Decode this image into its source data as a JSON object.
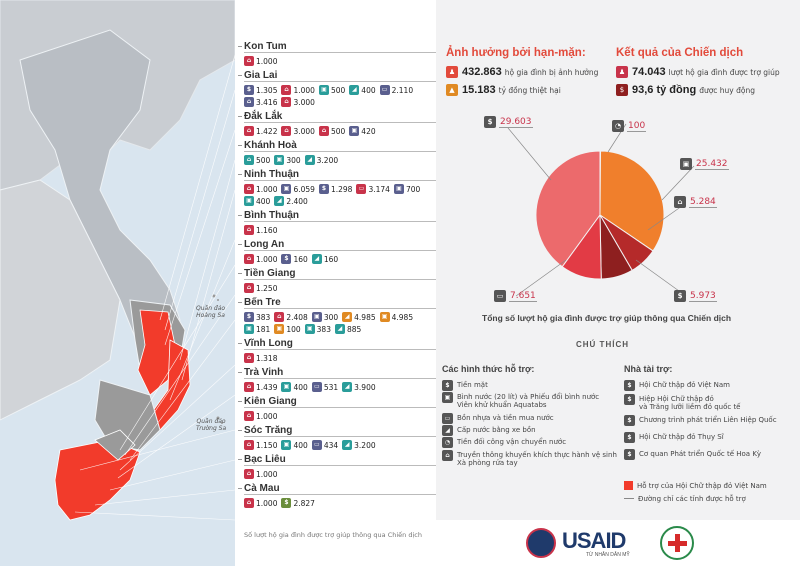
{
  "provinces": [
    {
      "name": "Kon Tum",
      "items": [
        {
          "c": "c-red",
          "i": "⌂",
          "v": "1.000"
        }
      ]
    },
    {
      "name": "Gia Lai",
      "items": [
        {
          "c": "c-blue",
          "i": "$",
          "v": "1.305"
        },
        {
          "c": "c-red",
          "i": "⌂",
          "v": "1.000"
        },
        {
          "c": "c-teal",
          "i": "▣",
          "v": "500"
        },
        {
          "c": "c-teal",
          "i": "◢",
          "v": "400"
        },
        {
          "c": "c-blue",
          "i": "▭",
          "v": "2.110"
        },
        {
          "c": "c-blue",
          "i": "⌂",
          "v": "3.416"
        },
        {
          "c": "c-red",
          "i": "⌂",
          "v": "3.000"
        }
      ]
    },
    {
      "name": "Đắk Lắk",
      "items": [
        {
          "c": "c-red",
          "i": "⌂",
          "v": "1.422"
        },
        {
          "c": "c-red",
          "i": "⌂",
          "v": "3.000"
        },
        {
          "c": "c-red",
          "i": "⌂",
          "v": "500"
        },
        {
          "c": "c-blue",
          "i": "▣",
          "v": "420"
        }
      ]
    },
    {
      "name": "Khánh Hoà",
      "items": [
        {
          "c": "c-teal",
          "i": "⌂",
          "v": "500"
        },
        {
          "c": "c-teal",
          "i": "▣",
          "v": "300"
        },
        {
          "c": "c-teal",
          "i": "◢",
          "v": "3.200"
        }
      ]
    },
    {
      "name": "Ninh Thuận",
      "items": [
        {
          "c": "c-red",
          "i": "⌂",
          "v": "1.000"
        },
        {
          "c": "c-blue",
          "i": "▣",
          "v": "6.059"
        },
        {
          "c": "c-blue",
          "i": "$",
          "v": "1.298"
        },
        {
          "c": "c-red",
          "i": "▭",
          "v": "3.174"
        },
        {
          "c": "c-blue",
          "i": "▣",
          "v": "700"
        },
        {
          "c": "c-teal",
          "i": "▣",
          "v": "400"
        },
        {
          "c": "c-teal",
          "i": "◢",
          "v": "2.400"
        }
      ]
    },
    {
      "name": "Bình Thuận",
      "items": [
        {
          "c": "c-red",
          "i": "⌂",
          "v": "1.160"
        }
      ]
    },
    {
      "name": "Long An",
      "items": [
        {
          "c": "c-red",
          "i": "⌂",
          "v": "1.000"
        },
        {
          "c": "c-blue",
          "i": "$",
          "v": "160"
        },
        {
          "c": "c-teal",
          "i": "◢",
          "v": "160"
        }
      ]
    },
    {
      "name": "Tiền Giang",
      "items": [
        {
          "c": "c-red",
          "i": "⌂",
          "v": "1.250"
        }
      ]
    },
    {
      "name": "Bến Tre",
      "items": [
        {
          "c": "c-blue",
          "i": "$",
          "v": "383"
        },
        {
          "c": "c-red",
          "i": "⌂",
          "v": "2.408"
        },
        {
          "c": "c-blue",
          "i": "▣",
          "v": "300"
        },
        {
          "c": "c-orange",
          "i": "◢",
          "v": "4.985"
        },
        {
          "c": "c-orange",
          "i": "▣",
          "v": "4.985"
        },
        {
          "c": "c-teal",
          "i": "▣",
          "v": "181"
        },
        {
          "c": "c-orange",
          "i": "▣",
          "v": "100"
        },
        {
          "c": "c-teal",
          "i": "▣",
          "v": "383"
        },
        {
          "c": "c-teal",
          "i": "◢",
          "v": "885"
        }
      ]
    },
    {
      "name": "Vĩnh Long",
      "items": [
        {
          "c": "c-red",
          "i": "⌂",
          "v": "1.318"
        }
      ]
    },
    {
      "name": "Trà Vinh",
      "items": [
        {
          "c": "c-red",
          "i": "⌂",
          "v": "1.439"
        },
        {
          "c": "c-teal",
          "i": "▣",
          "v": "400"
        },
        {
          "c": "c-blue",
          "i": "▭",
          "v": "531"
        },
        {
          "c": "c-teal",
          "i": "◢",
          "v": "3.900"
        }
      ]
    },
    {
      "name": "Kiên Giang",
      "items": [
        {
          "c": "c-red",
          "i": "⌂",
          "v": "1.000"
        }
      ]
    },
    {
      "name": "Sóc Trăng",
      "items": [
        {
          "c": "c-red",
          "i": "⌂",
          "v": "1.150"
        },
        {
          "c": "c-teal",
          "i": "▣",
          "v": "400"
        },
        {
          "c": "c-blue",
          "i": "▭",
          "v": "434"
        },
        {
          "c": "c-teal",
          "i": "◢",
          "v": "3.200"
        }
      ]
    },
    {
      "name": "Bạc Liêu",
      "items": [
        {
          "c": "c-red",
          "i": "⌂",
          "v": "1.000"
        }
      ]
    },
    {
      "name": "Cà Mau",
      "items": [
        {
          "c": "c-red",
          "i": "⌂",
          "v": "1.000"
        },
        {
          "c": "c-green",
          "i": "$",
          "v": "2.827"
        }
      ]
    }
  ],
  "note": "Số lượt hộ gia đình được trợ giúp thông qua Chiến dịch",
  "map_labels": {
    "hoang_sa": "Quần đảo\nHoàng Sa",
    "truong_sa": "Quần đảo\nTrường Sa"
  },
  "impact": {
    "title": "Ảnh hưởng bởi hạn-mặn:",
    "households_value": "432.863",
    "households_text": "hộ gia đình bị ảnh hưởng",
    "damage_value": "15.183",
    "damage_text": "tỷ đồng thiệt hại"
  },
  "results": {
    "title": "Kết quả của Chiến dịch",
    "assisted_value": "74.043",
    "assisted_text": "lượt hộ gia đình được trợ giúp",
    "raised_value": "93,6 tỷ đồng",
    "raised_text": "được huy động"
  },
  "chart_data": {
    "type": "pie",
    "title": "Tổng số lượt hộ gia đình được trợ giúp thông qua Chiến dịch",
    "slices": [
      {
        "label": "Tiền mặt",
        "value": 29603,
        "display": "29.603",
        "color": "#ec6a6c"
      },
      {
        "label": "Tiền đối công vận chuyển nước",
        "value": 100,
        "display": "100",
        "color": "#f5a66a"
      },
      {
        "label": "Bình nước (20 lít) và Phiếu đổi bình nước Viên khử khuẩn Aquatabs",
        "value": 25432,
        "display": "25.432",
        "color": "#f07f2c"
      },
      {
        "label": "Truyền thông khuyến khích thực hành vệ sinh Xà phòng rửa tay",
        "value": 5284,
        "display": "5.284",
        "color": "#b52a2a"
      },
      {
        "label": "Tiền mặt (khác)",
        "value": 5973,
        "display": "5.973",
        "color": "#8e1f1f"
      },
      {
        "label": "Bồn nhựa và tiền mua nước",
        "value": 7651,
        "display": "7.651",
        "color": "#e23b45"
      }
    ]
  },
  "legend": {
    "title": "CHÚ THÍCH",
    "support_title": "Các hình thức hỗ trợ:",
    "support": [
      {
        "i": "$",
        "text": "Tiền mặt"
      },
      {
        "i": "▣",
        "text": "Bình nước (20 lít) và Phiếu đổi bình nước\nViên khử khuẩn Aquatabs"
      },
      {
        "i": "▭",
        "text": "Bồn nhựa và tiền mua nước"
      },
      {
        "i": "◢",
        "text": "Cấp nước bằng xe bồn"
      },
      {
        "i": "◔",
        "text": "Tiền đối công vận chuyển nước"
      },
      {
        "i": "⌂",
        "text": "Truyền thông khuyến khích thực hành vệ sinh\nXà phòng rửa tay"
      }
    ],
    "donor_title": "Nhà tài trợ:",
    "donors": [
      {
        "c": "c-red",
        "text": "Hội Chữ thập đỏ Việt Nam"
      },
      {
        "c": "c-blue",
        "text": "Hiệp Hội Chữ thập đỏ\nvà Trăng lưỡi liềm đỏ quốc tế"
      },
      {
        "c": "c-orange",
        "text": "Chương trình phát triển Liên Hiệp Quốc"
      },
      {
        "c": "c-green",
        "text": "Hội Chữ thập đỏ Thụy Sĩ"
      },
      {
        "c": "c-teal",
        "text": "Cơ quan Phát triển Quốc tế Hoa Kỳ"
      }
    ],
    "region_text": "Hỗ trợ của Hội Chữ thập đỏ Việt Nam",
    "line_text": "Đường chỉ các tỉnh được hỗ trợ"
  },
  "logos": {
    "usaid": "USAID",
    "usaid_sub": "TỪ NHÂN DÂN MỸ"
  },
  "colors": {
    "accent": "#e24a3b",
    "map_red": "#f23b2b",
    "map_grey": "#9a9a9a"
  }
}
